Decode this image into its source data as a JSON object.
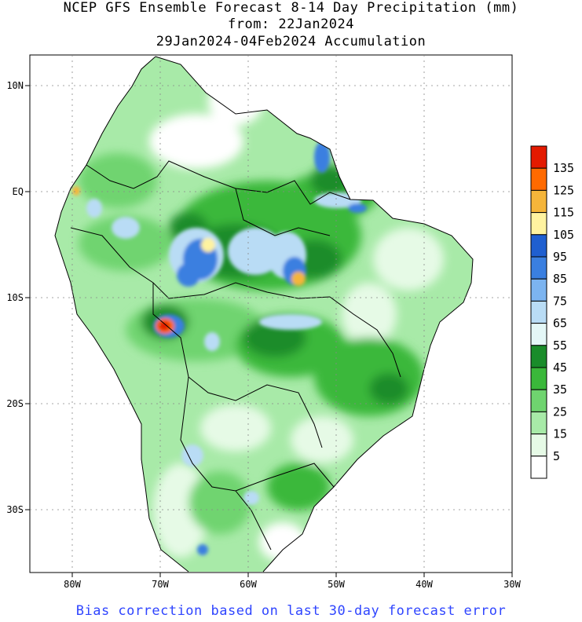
{
  "title": {
    "line1": "NCEP GFS Ensemble Forecast 8-14 Day Precipitation (mm)",
    "line2": "from: 22Jan2024",
    "line3": "29Jan2024-04Feb2024 Accumulation"
  },
  "axes": {
    "lon_labels": [
      "80W",
      "70W",
      "60W",
      "50W",
      "40W",
      "30W"
    ],
    "lat_labels": [
      "10N",
      "EQ",
      "10S",
      "20S",
      "30S"
    ],
    "lon_range": [
      -85,
      -30
    ],
    "lat_range": [
      14,
      -36
    ],
    "grid": "dotted"
  },
  "colorbar": {
    "labels": [
      "135",
      "125",
      "115",
      "105",
      "95",
      "85",
      "75",
      "65",
      "55",
      "45",
      "35",
      "25",
      "15",
      "5"
    ],
    "colors": [
      "#e31a00",
      "#ff6a00",
      "#f5b53a",
      "#fff3a0",
      "#1f5fd0",
      "#3a7fe0",
      "#7cb4f0",
      "#b9dcf5",
      "#e4f7f7",
      "#1a8c2a",
      "#3ab83a",
      "#6fd46f",
      "#a8eaa8",
      "#e6fae6",
      "#ffffff"
    ]
  },
  "footer": "Bias correction based on last 30-day forecast error"
}
